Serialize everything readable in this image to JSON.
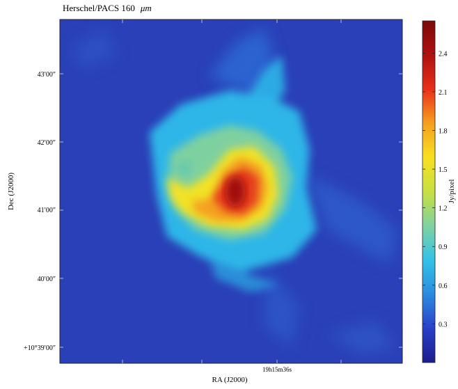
{
  "figure": {
    "title": "Herschel/PACS 160",
    "title_unit": "μm",
    "xlabel": "RA (J2000)",
    "ylabel": "Dec (J2000)",
    "x_ticks": [
      {
        "label": "19h15m36s"
      }
    ],
    "y_ticks": [
      {
        "label": "+10°39′00″"
      },
      {
        "label": "40′00″"
      },
      {
        "label": "41′00″"
      },
      {
        "label": "42′00″"
      },
      {
        "label": "43′00″"
      }
    ],
    "colorbar": {
      "label": "Jy/pixel",
      "min": 0.0,
      "max": 2.65,
      "ticks": [
        "0.3",
        "0.6",
        "0.9",
        "1.2",
        "1.5",
        "1.8",
        "2.1",
        "2.4"
      ],
      "colors": [
        "#1c1c8c",
        "#2a40c8",
        "#2b8be0",
        "#32c2e8",
        "#7fd2a0",
        "#c8e040",
        "#f7e020",
        "#f6a020",
        "#e83018",
        "#b01010",
        "#7a0a0a"
      ]
    },
    "image": {
      "background_color": "#2a40b8",
      "peak_color": "#a01010"
    }
  }
}
